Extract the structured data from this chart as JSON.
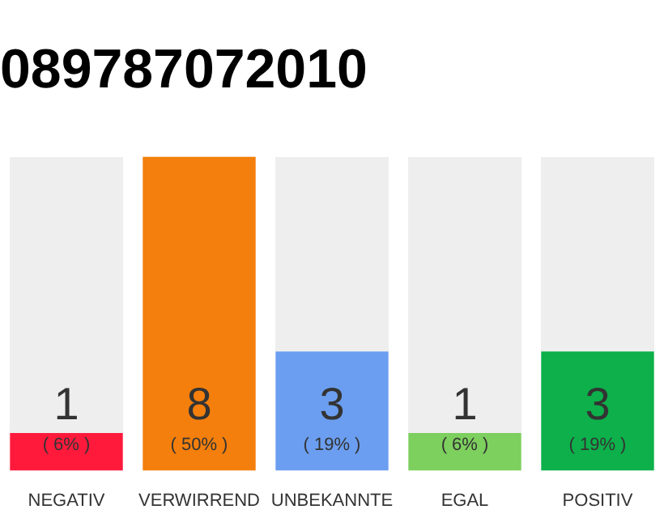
{
  "chart_data": {
    "type": "bar",
    "title": "089787072010",
    "categories": [
      "NEGATIV",
      "VERWIRREND",
      "UNBEKANNTE",
      "EGAL",
      "POSITIV"
    ],
    "values": [
      6,
      50,
      19,
      6,
      19
    ],
    "colors": [
      "#ff1a3c",
      "#f47f0c",
      "#6b9ef0",
      "#7dcf5e",
      "#0db04a"
    ],
    "value_labels": [
      "( 6% )",
      "( 50% )",
      "( 19% )",
      "( 6% )",
      "( 19% )"
    ],
    "annotations": [
      "1",
      "8",
      "3",
      "1",
      "3"
    ],
    "tick_labels": "x",
    "grid": false,
    "legend": false
  }
}
